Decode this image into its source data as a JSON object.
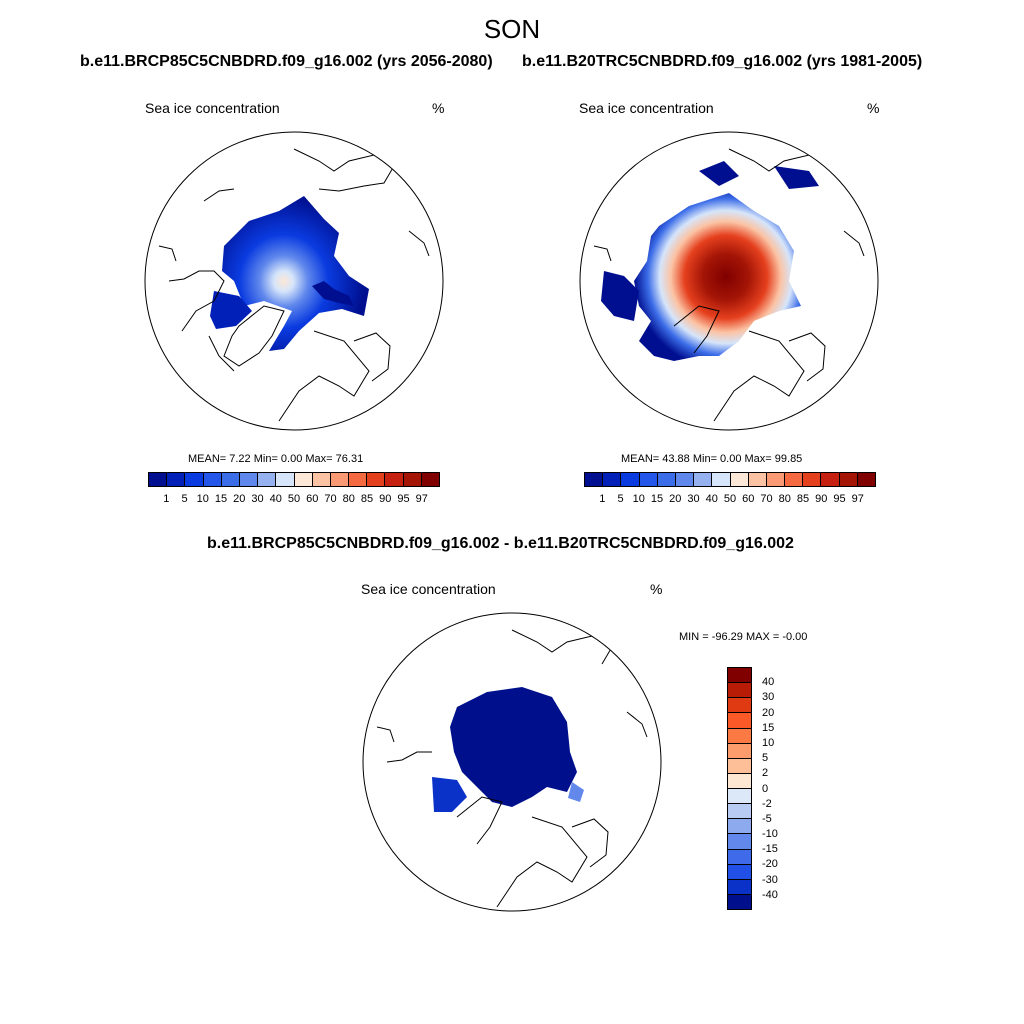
{
  "title": "SON",
  "panels": {
    "left": {
      "title": "b.e11.BRCP85C5CNBDRD.f09_g16.002 (yrs 2056-2080)",
      "variable": "Sea ice concentration",
      "units": "%",
      "stats": "MEAN=  7.22  Min=   0.00  Max=  76.31"
    },
    "right": {
      "title": "b.e11.B20TRC5CNBDRD.f09_g16.002 (yrs 1981-2005)",
      "variable": "Sea ice concentration",
      "units": "%",
      "stats": "MEAN=  43.88  Min=   0.00  Max=  99.85"
    },
    "diff": {
      "title": "b.e11.BRCP85C5CNBDRD.f09_g16.002 - b.e11.B20TRC5CNBDRD.f09_g16.002",
      "variable": "Sea ice concentration",
      "units": "%",
      "stats": "MIN = -96.29 MAX =  -0.00"
    }
  },
  "colorbar_top": {
    "labels": [
      "1",
      "5",
      "10",
      "15",
      "20",
      "30",
      "40",
      "50",
      "60",
      "70",
      "80",
      "85",
      "90",
      "95",
      "97"
    ],
    "colors": [
      "#000f8f",
      "#0020b8",
      "#0a3be0",
      "#2456ea",
      "#3c6de8",
      "#6088ec",
      "#96b1f0",
      "#d6e5fa",
      "#fde7d6",
      "#fbc3a4",
      "#f99a74",
      "#f56a40",
      "#e5401e",
      "#c52010",
      "#a41506",
      "#800000"
    ]
  },
  "colorbar_diff": {
    "labels": [
      "40",
      "30",
      "20",
      "15",
      "10",
      "5",
      "2",
      "0",
      "-2",
      "-5",
      "-10",
      "-15",
      "-20",
      "-30",
      "-40"
    ],
    "colors": [
      "#800000",
      "#b91c06",
      "#e03a12",
      "#fb5a28",
      "#fb7a44",
      "#fc9c6c",
      "#fdbf97",
      "#fde6d2",
      "#dce8f8",
      "#b8cbf2",
      "#8eaaee",
      "#6388ec",
      "#3f6aea",
      "#2050e6",
      "#0a32c8",
      "#00108c"
    ]
  }
}
